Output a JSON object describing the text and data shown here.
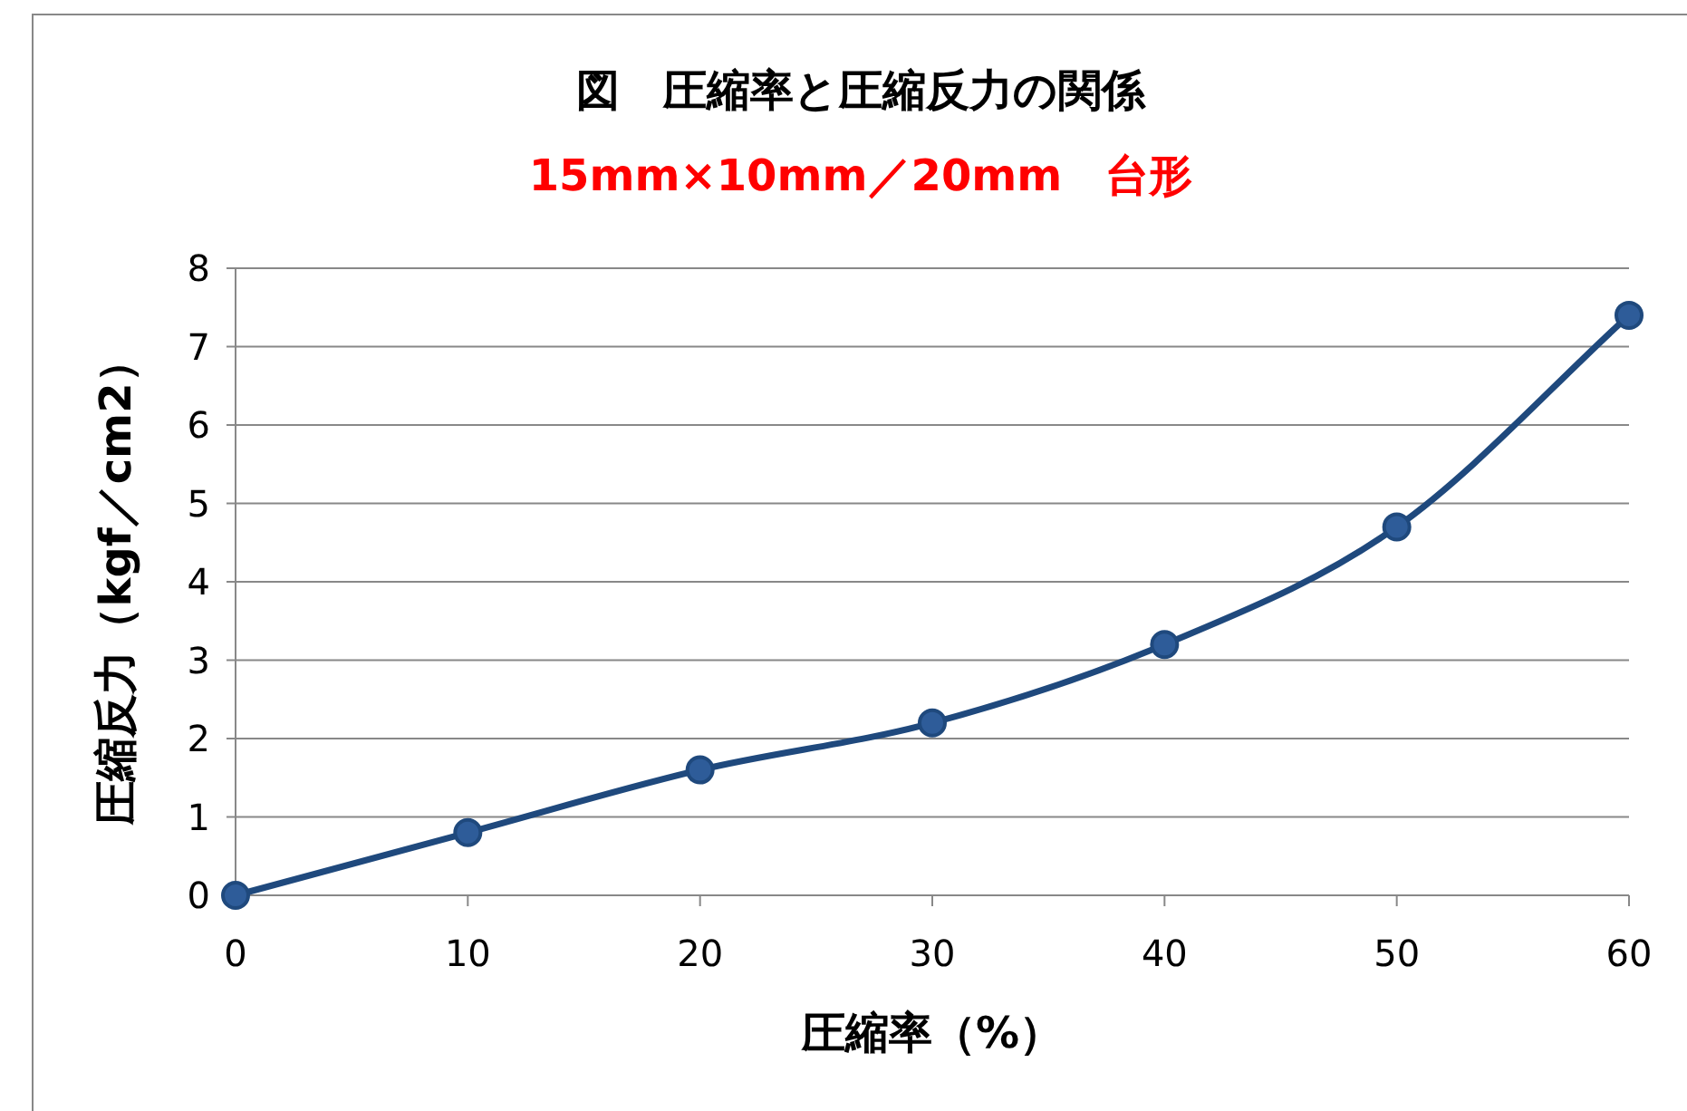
{
  "chart_data": {
    "type": "line",
    "title": "図　圧縮率と圧縮反力の関係",
    "subtitle": "15mm×10mm／20mm　台形",
    "xlabel": "圧縮率（%）",
    "ylabel": "圧縮反力（kgf／cm2）",
    "x": [
      0,
      10,
      20,
      30,
      40,
      50,
      60
    ],
    "values": [
      0,
      0.8,
      1.6,
      2.2,
      3.2,
      4.7,
      7.4
    ],
    "color": "#1f497d",
    "marker": "circle",
    "grid": "y",
    "xlim": [
      0,
      60
    ],
    "ylim": [
      0,
      8
    ],
    "xticks": [
      0,
      10,
      20,
      30,
      40,
      50,
      60
    ],
    "yticks": [
      0,
      1,
      2,
      3,
      4,
      5,
      6,
      7,
      8
    ]
  }
}
